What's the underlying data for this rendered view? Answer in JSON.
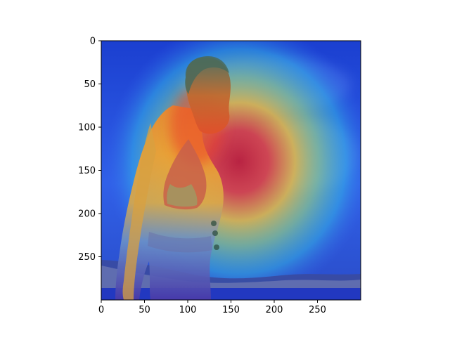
{
  "figure": {
    "content": "heatmap overlay on photo",
    "colormap": "jet",
    "background": "#ffffff",
    "axis_color": "#000000"
  },
  "image": {
    "width_units": 300,
    "height_units": 300,
    "heat_center_units": [
      160,
      155
    ],
    "person_center_units": [
      95,
      200
    ]
  },
  "axes": {
    "x": {
      "ticks": [
        0,
        50,
        100,
        150,
        200,
        250
      ],
      "tick_labels": [
        "0",
        "50",
        "100",
        "150",
        "200",
        "250"
      ]
    },
    "y": {
      "ticks": [
        0,
        50,
        100,
        150,
        200,
        250
      ],
      "tick_labels": [
        "0",
        "50",
        "100",
        "150",
        "200",
        "250"
      ]
    }
  }
}
